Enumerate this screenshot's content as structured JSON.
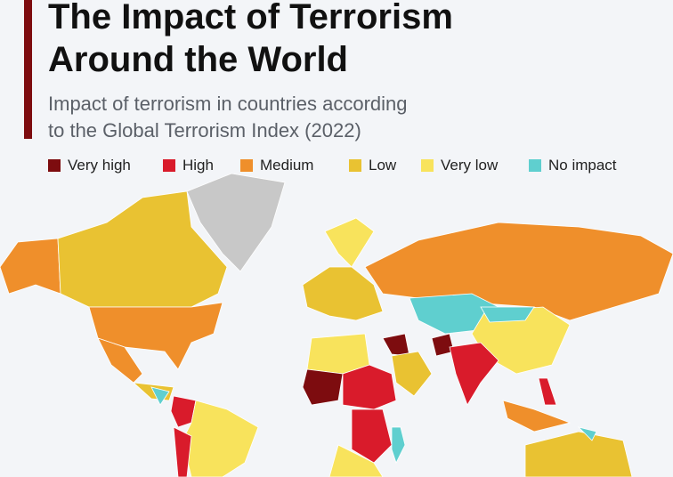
{
  "header": {
    "title_lines": [
      "The Impact of Terrorism",
      "Around the World"
    ],
    "subtitle_lines": [
      "Impact of terrorism in countries according",
      "to the Global Terrorism Index (2022)"
    ]
  },
  "legend": [
    {
      "label": "Very high",
      "color": "#7d0c0f"
    },
    {
      "label": "High",
      "color": "#d91b2b"
    },
    {
      "label": "Medium",
      "color": "#ef8f2b"
    },
    {
      "label": "Low",
      "color": "#e9c232"
    },
    {
      "label": "Very low",
      "color": "#f8e35c"
    },
    {
      "label": "No impact",
      "color": "#5fcfcf"
    }
  ]
}
